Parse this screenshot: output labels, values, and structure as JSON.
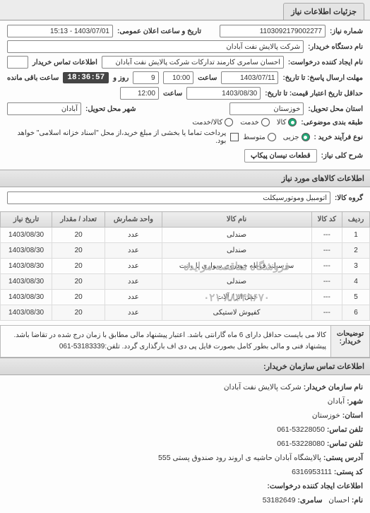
{
  "tab": "جزئیات اطلاعات نیاز",
  "header": {
    "number_lbl": "شماره نیاز:",
    "number": "1103092179002277",
    "date_lbl": "تاریخ و ساعت اعلان عمومی:",
    "date": "1403/07/01 - 15:13",
    "buyer_lbl": "نام دستگاه خریدار:",
    "buyer": "شرکت پالایش نفت آبادان",
    "requester_lbl": "نام ایجاد کننده درخواست:",
    "requester": "احسان سامری کارمند تدارکات شرکت پالایش نفت آبادان",
    "contact_lbl": "اطلاعات تماس خریدار",
    "contact": "",
    "deadline_lbl": "مهلت ارسال پاسخ: تا تاریخ:",
    "deadline_date": "1403/07/11",
    "time_lbl": "ساعت",
    "deadline_time": "10:00",
    "remain_days": "9",
    "remain_days_lbl": "روز و",
    "countdown": "18:36:57",
    "remain_suffix": "ساعت باقی مانده",
    "credit_lbl": "حداقل تاریخ اعتبار قیمت: تا تاریخ:",
    "credit_date": "1403/08/30",
    "credit_time": "12:00",
    "province_lbl": "استان محل تحویل:",
    "province": "خوزستان",
    "city_lbl": "شهر محل تحویل:",
    "city": "آبادان",
    "type_lbl": "طبقه بندی موضوعی:",
    "type_options": [
      {
        "label": "کالا",
        "on": true
      },
      {
        "label": "خدمت",
        "on": false
      },
      {
        "label": "کالا/خدمت",
        "on": false
      }
    ],
    "proc_lbl": "نوع فرآیند خرید :",
    "proc_options": [
      {
        "label": "جزیی",
        "on": true
      },
      {
        "label": "متوسط",
        "on": false
      }
    ],
    "proc_note": "پرداخت تماما یا بخشی از مبلغ خرید،از محل \"اسناد خزانه اسلامی\" خواهد بود.",
    "desc_lbl": "شرح کلی نیاز:",
    "desc_chip": "قطعات نیسان پیکاپ"
  },
  "section2": {
    "title": "اطلاعات کالاهای مورد نیاز",
    "group_lbl": "گروه کالا:",
    "group": "اتومبیل وموتورسیکلت"
  },
  "table": {
    "cols": [
      "ردیف",
      "کد کالا",
      "نام کالا",
      "واحد شمارش",
      "تعداد / مقدار",
      "تاریخ نیاز"
    ],
    "rows": [
      [
        "1",
        "---",
        "صندلی",
        "عدد",
        "20",
        "1403/08/30"
      ],
      [
        "2",
        "---",
        "صندلی",
        "عدد",
        "20",
        "1403/08/30"
      ],
      [
        "3",
        "---",
        "سرسیلند قوطه خودروی سواری یا وانت",
        "عدد",
        "20",
        "1403/08/30"
      ],
      [
        "4",
        "---",
        "صندلی",
        "عدد",
        "20",
        "1403/08/30"
      ],
      [
        "5",
        "---",
        "قفل ابزارآلات",
        "عدد",
        "20",
        "1403/08/30"
      ],
      [
        "6",
        "---",
        "کفپوش لاستیکی",
        "عدد",
        "20",
        "1403/08/30"
      ]
    ],
    "watermark1": "فروشگاه مناقصه مزایده",
    "watermark2": "۰۲۱-۸۸۳۴۹۶۷۰"
  },
  "buyer_note": {
    "lbl": "توضیحات خریدار:",
    "txt": "کالا می بایست حداقل دارای 6 ماه گارانتی باشد. اعتبار پیشنهاد مالی مطابق با زمان درج شده در تقاضا باشد. پیشنهاد فنی و مالی بطور کامل بصورت فایل پی دی اف بارگذاری گردد. تلفن:53183339-061"
  },
  "section3": "اطلاعات تماس سازمان خریدار:",
  "contact": {
    "org_lbl": "نام سازمان خریدار:",
    "org": "شرکت پالایش نفت آبادان",
    "city_lbl": "شهر:",
    "city": "آبادان",
    "province_lbl": "استان:",
    "province": "خوزستان",
    "tel_lbl": "تلفن تماس:",
    "tel": "53228050-061",
    "fax_lbl": "تلفن تماس:",
    "fax": "53228080-061",
    "addr_lbl": "آدرس پستی:",
    "addr": "پالایشگاه آبادان حاشیه ی اروند رود صندوق پستی 555",
    "post_lbl": "کد پستی:",
    "post": "6316953111",
    "creator_section": "اطلاعات ایجاد کننده درخواست:",
    "name_lbl": "نام:",
    "name": "احسان",
    "surname_lbl": "سامری:",
    "surname": "53182649"
  }
}
